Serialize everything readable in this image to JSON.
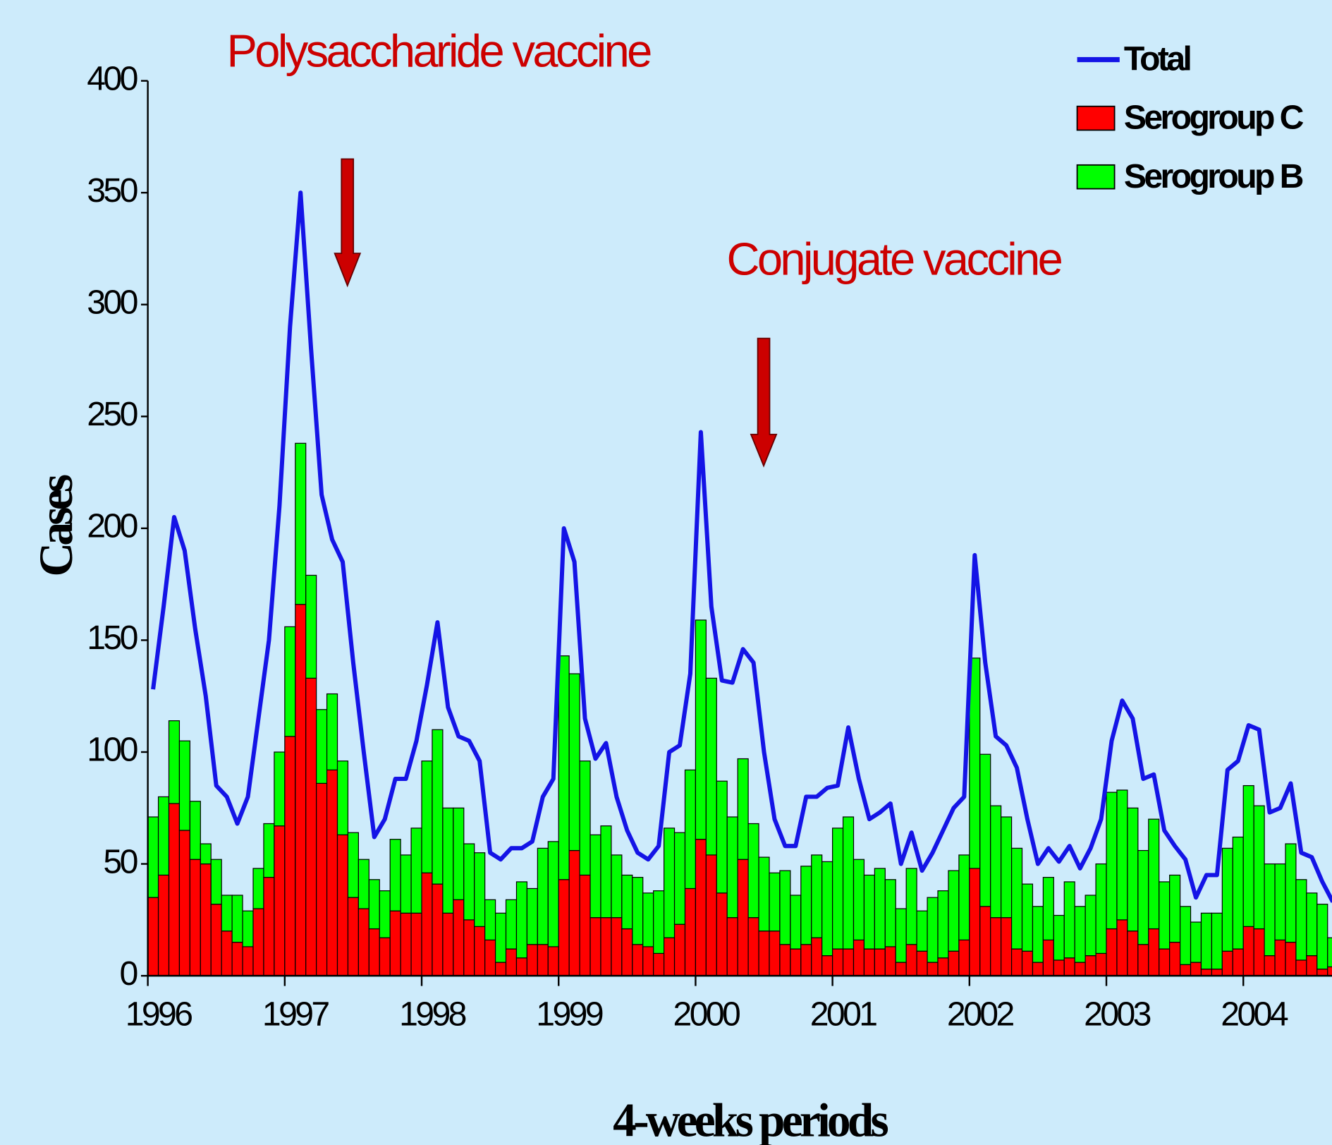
{
  "chart_data": {
    "type": "bar",
    "stacked": true,
    "annotations": [
      "Polysaccharide vaccine",
      "Conjugate vaccine"
    ],
    "x_label": "4-weeks periods",
    "y_label": "Cases",
    "categories": [
      "1996",
      null,
      null,
      null,
      null,
      null,
      null,
      null,
      null,
      null,
      null,
      null,
      null,
      "1997",
      null,
      null,
      null,
      null,
      null,
      null,
      null,
      null,
      null,
      null,
      null,
      null,
      "1998",
      null,
      null,
      null,
      null,
      null,
      null,
      null,
      null,
      null,
      null,
      null,
      null,
      "1999",
      null,
      null,
      null,
      null,
      null,
      null,
      null,
      null,
      null,
      null,
      null,
      null,
      "2000",
      null,
      null,
      null,
      null,
      null,
      null,
      null,
      null,
      null,
      null,
      null,
      null,
      "2001",
      null,
      null,
      null,
      null,
      null,
      null,
      null,
      null,
      null,
      null,
      null,
      null,
      "2002",
      null,
      null,
      null,
      null,
      null,
      null,
      null,
      null,
      null,
      null,
      null,
      null,
      "2003",
      null,
      null,
      null,
      null,
      null,
      null,
      null,
      null,
      null,
      null,
      null,
      null,
      "2004",
      null,
      null,
      null,
      null,
      null,
      null,
      null,
      null
    ],
    "series": [
      {
        "name": "Total",
        "type": "line",
        "color": "#1414e6",
        "values": [
          128,
          165,
          205,
          190,
          155,
          125,
          85,
          80,
          68,
          80,
          115,
          150,
          210,
          290,
          350,
          280,
          215,
          195,
          185,
          140,
          100,
          62,
          70,
          88,
          88,
          105,
          130,
          158,
          120,
          107,
          105,
          96,
          55,
          52,
          57,
          57,
          60,
          80,
          88,
          200,
          185,
          115,
          97,
          104,
          80,
          65,
          55,
          52,
          58,
          100,
          103,
          135,
          243,
          165,
          132,
          131,
          146,
          140,
          100,
          70,
          58,
          58,
          80,
          80,
          84,
          85,
          111,
          88,
          70,
          73,
          77,
          50,
          64,
          47,
          55,
          65,
          75,
          80,
          188,
          140,
          107,
          103,
          93,
          70,
          50,
          57,
          51,
          58,
          48,
          57,
          70,
          105,
          123,
          115,
          88,
          90,
          65,
          58,
          52,
          35,
          45,
          45,
          92,
          96,
          112,
          110,
          73,
          75,
          86,
          55,
          53,
          42,
          33
        ]
      },
      {
        "name": "Serogroup C",
        "type": "bar",
        "color": "#ff0000",
        "values": [
          35,
          45,
          77,
          65,
          52,
          50,
          32,
          20,
          15,
          13,
          30,
          44,
          67,
          107,
          166,
          133,
          86,
          92,
          63,
          35,
          30,
          21,
          17,
          29,
          28,
          28,
          46,
          41,
          28,
          34,
          25,
          22,
          16,
          6,
          12,
          8,
          14,
          14,
          13,
          43,
          56,
          45,
          26,
          26,
          26,
          21,
          14,
          13,
          10,
          17,
          23,
          39,
          61,
          54,
          37,
          26,
          52,
          26,
          20,
          20,
          14,
          12,
          14,
          17,
          9,
          12,
          12,
          16,
          12,
          12,
          13,
          6,
          14,
          11,
          6,
          8,
          11,
          16,
          48,
          31,
          26,
          26,
          12,
          11,
          6,
          16,
          7,
          8,
          6,
          9,
          10,
          21,
          25,
          20,
          14,
          21,
          12,
          15,
          5,
          6,
          3,
          3,
          11,
          12,
          22,
          21,
          9,
          16,
          15,
          7,
          9,
          3,
          4
        ]
      },
      {
        "name": "Serogroup B",
        "type": "bar",
        "color": "#00ff00",
        "values": [
          36,
          35,
          37,
          40,
          26,
          9,
          20,
          16,
          21,
          16,
          18,
          24,
          33,
          49,
          72,
          46,
          33,
          34,
          33,
          29,
          22,
          22,
          21,
          32,
          26,
          38,
          50,
          69,
          47,
          41,
          34,
          33,
          18,
          22,
          22,
          34,
          25,
          43,
          47,
          100,
          79,
          51,
          37,
          41,
          28,
          24,
          30,
          24,
          28,
          49,
          41,
          53,
          98,
          79,
          50,
          45,
          45,
          42,
          33,
          26,
          33,
          24,
          35,
          37,
          42,
          54,
          59,
          36,
          33,
          36,
          30,
          24,
          34,
          18,
          29,
          30,
          36,
          38,
          94,
          68,
          50,
          45,
          45,
          30,
          25,
          28,
          20,
          34,
          25,
          27,
          40,
          61,
          58,
          55,
          42,
          49,
          30,
          30,
          26,
          18,
          25,
          25,
          46,
          50,
          63,
          55,
          41,
          34,
          44,
          36,
          28,
          29,
          13
        ]
      }
    ],
    "ylim": [
      0,
      400
    ],
    "yticks": [
      0,
      50,
      100,
      150,
      200,
      250,
      300,
      350,
      400
    ]
  }
}
